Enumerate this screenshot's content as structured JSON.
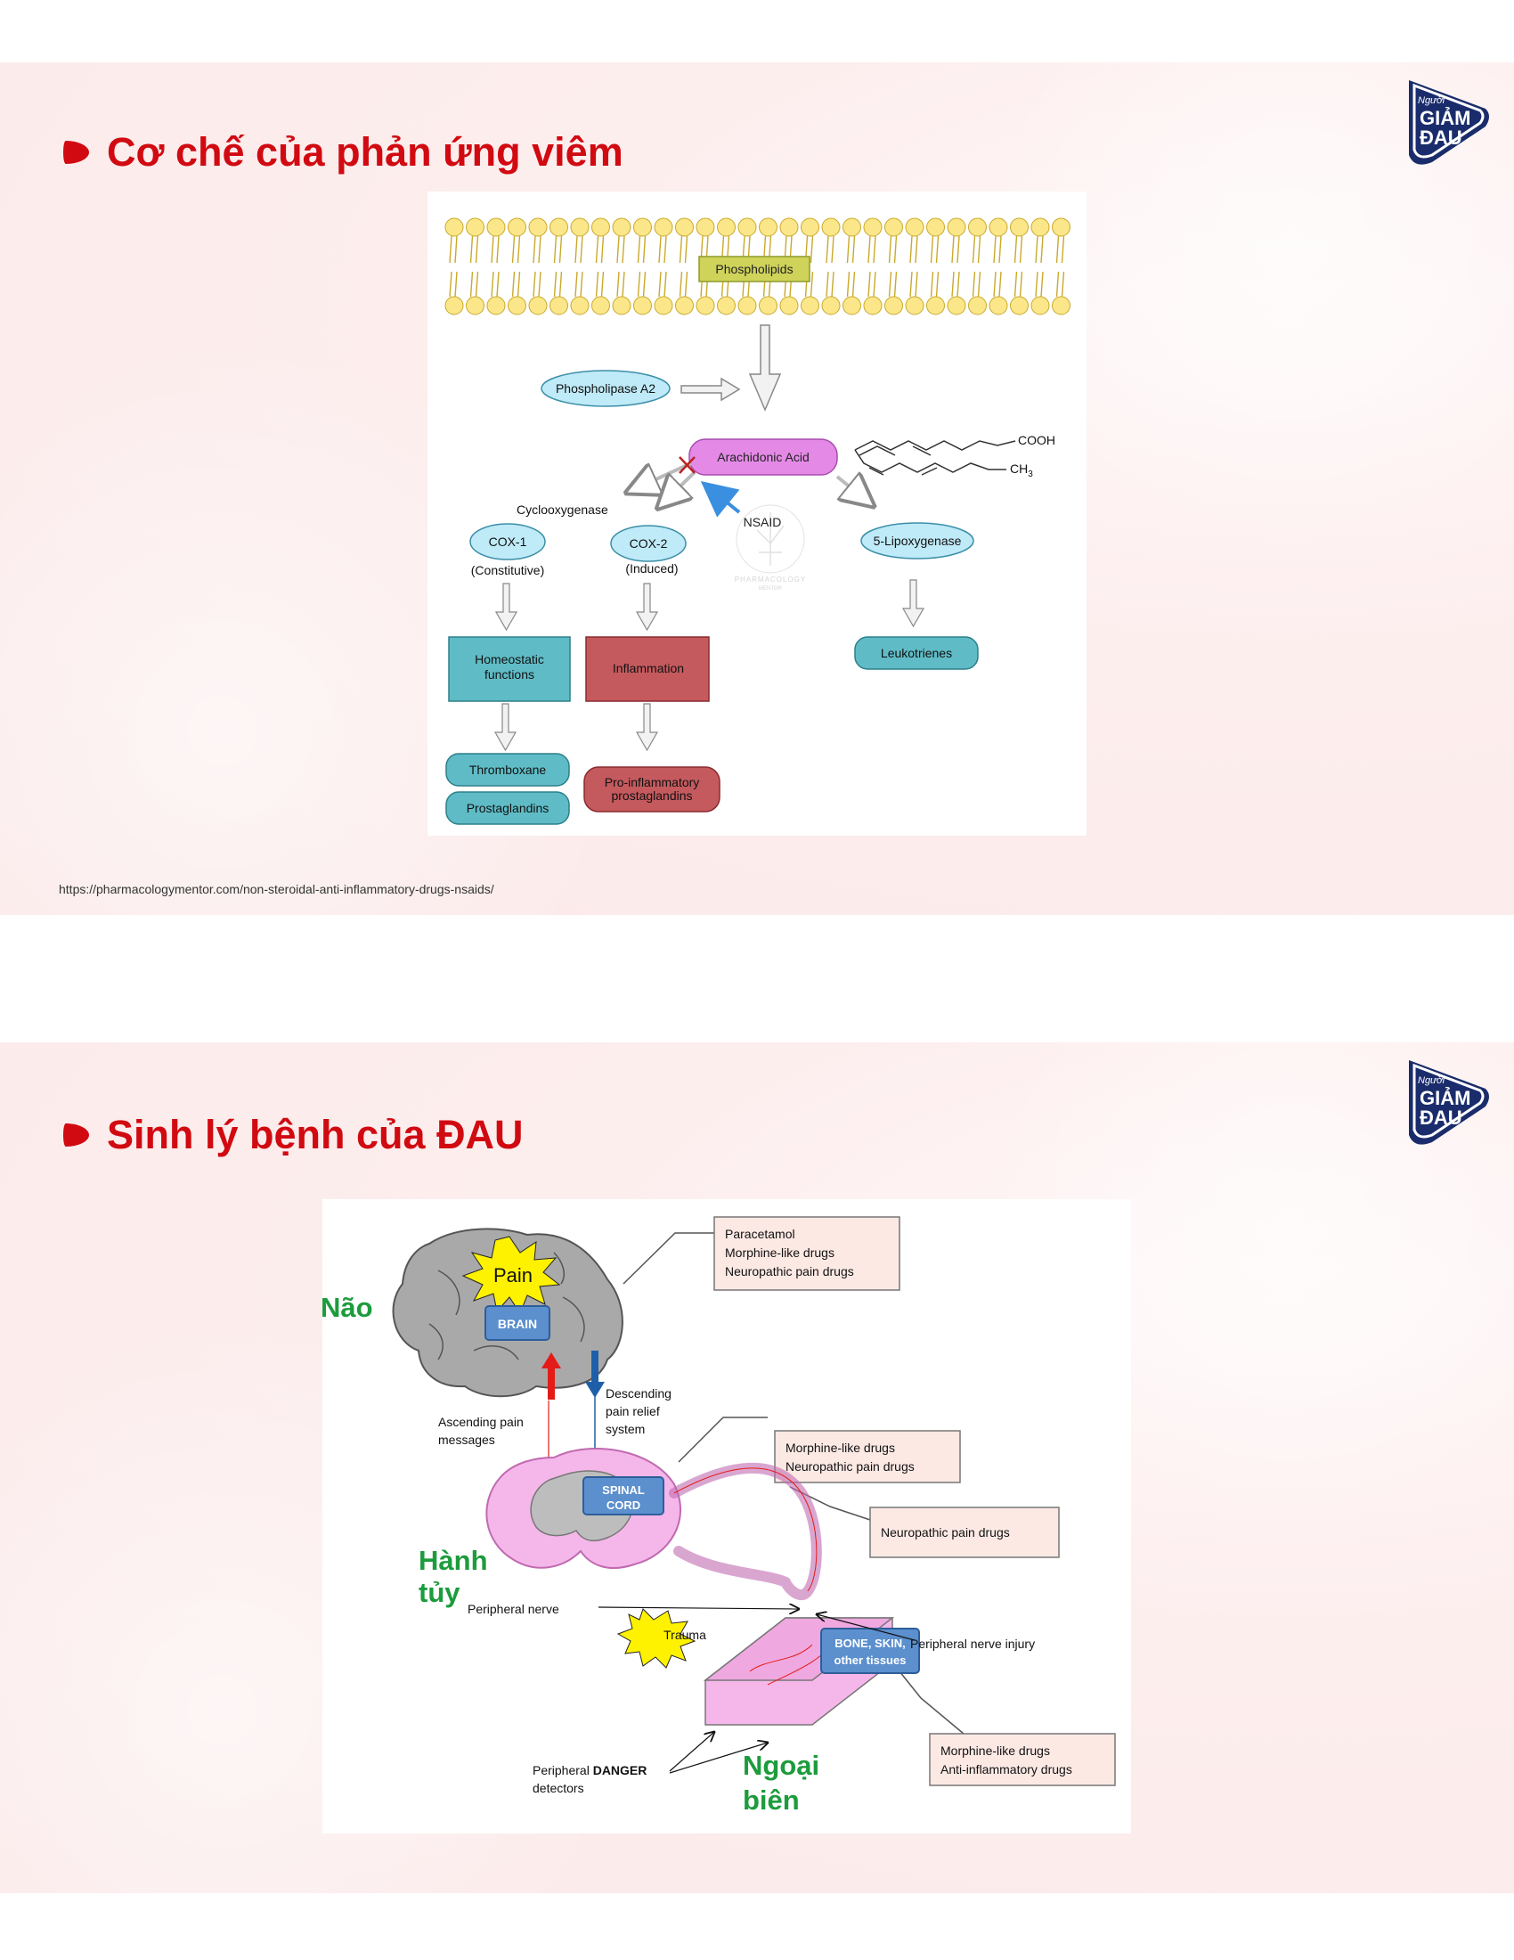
{
  "brand": {
    "line1": "Người",
    "line2": "GIẢM",
    "line3": "ĐAU"
  },
  "slide1": {
    "title": "Cơ chế của phản ứng viêm",
    "source": "https://pharmacologymentor.com/non-steroidal-anti-inflammatory-drugs-nsaids/",
    "diagram": {
      "phospholipids": "Phospholipids",
      "phospholipase": "Phospholipase A2",
      "arachidonic": "Arachidonic Acid",
      "cooh": "COOH",
      "ch3": "CH",
      "ch3_sub": "3",
      "cyclooxygenase": "Cyclooxygenase",
      "nsaid": "NSAID",
      "watermark1": "PHARMACOLOGY",
      "watermark2": "MENTOR",
      "cox1": "COX-1",
      "cox1_sub": "(Constitutive)",
      "cox2": "COX-2",
      "cox2_sub": "(Induced)",
      "lipox": "5-Lipoxygenase",
      "homeo1": "Homeostatic",
      "homeo2": "functions",
      "inflammation": "Inflammation",
      "leukotrienes": "Leukotrienes",
      "thromboxane": "Thromboxane",
      "prostaglandins": "Prostaglandins",
      "proinf1": "Pro-inflammatory",
      "proinf2": "prostaglandins"
    }
  },
  "slide2": {
    "title": "Sinh lý bệnh của ĐAU",
    "labels": {
      "nao": "Não",
      "hanh1": "Hành",
      "hanh2": "tủy",
      "ngoai1": "Ngoại",
      "ngoai2": "biên"
    },
    "diagram": {
      "pain": "Pain",
      "brain": "BRAIN",
      "box1": [
        "Paracetamol",
        "Morphine-like drugs",
        "Neuropathic pain drugs"
      ],
      "box2": [
        "Morphine-like drugs",
        "Neuropathic pain drugs"
      ],
      "box3": [
        "Neuropathic pain drugs"
      ],
      "box4": [
        "Morphine-like drugs",
        "Anti-inflammatory drugs"
      ],
      "descending": [
        "Descending",
        "pain relief",
        "system"
      ],
      "ascending": [
        "Ascending pain",
        "messages"
      ],
      "spinal1": "SPINAL",
      "spinal2": "CORD",
      "peripheral_nerve": "Peripheral  nerve",
      "nerve_injury": "Peripheral  nerve injury",
      "trauma": "Trauma",
      "tissue": [
        "BONE, SKIN,",
        "other  tissues"
      ],
      "danger_a": "Peripheral ",
      "danger_b": "DANGER",
      "danger_c": "detectors"
    }
  }
}
